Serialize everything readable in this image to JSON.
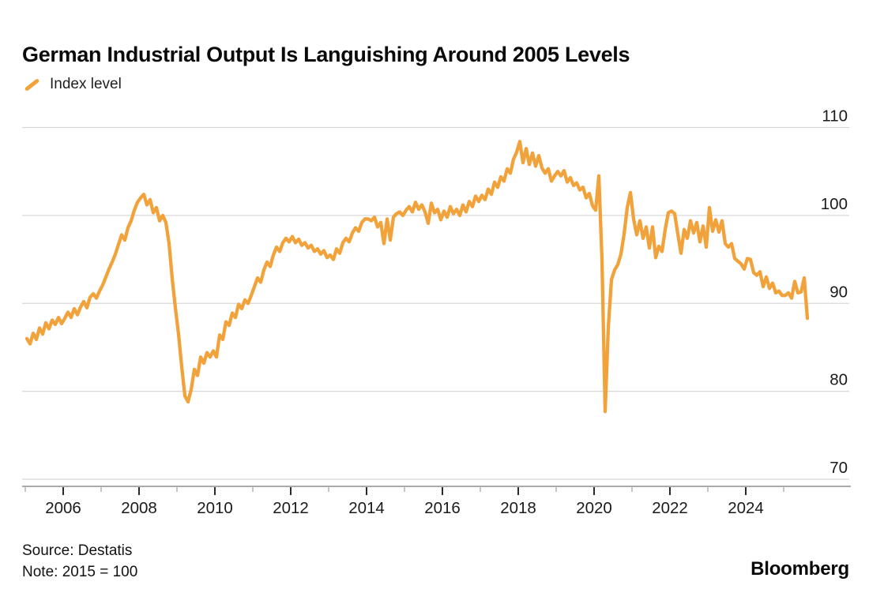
{
  "header": {
    "title": "German Industrial Output Is Languishing Around 2005 Levels"
  },
  "legend": {
    "label": "Index level",
    "color": "#F1A23A"
  },
  "footer": {
    "source": "Source: Destatis",
    "note": "Note: 2015 = 100",
    "brand": "Bloomberg"
  },
  "chart_data": {
    "type": "line",
    "title": "German Industrial Output Is Languishing Around 2005 Levels",
    "xlabel": "",
    "ylabel": "",
    "grid": "horizontal",
    "legend_position": "top-left",
    "ylim": [
      70,
      110
    ],
    "xlim": [
      2004.9,
      2026.75
    ],
    "y_ticks": [
      70,
      80,
      90,
      100,
      110
    ],
    "x_ticks_major": [
      2006,
      2008,
      2010,
      2012,
      2014,
      2016,
      2018,
      2020,
      2022,
      2024
    ],
    "x_ticks_minor": [
      2005,
      2007,
      2009,
      2011,
      2013,
      2015,
      2017,
      2019,
      2021,
      2023,
      2025
    ],
    "colors": {
      "line": "#F1A23A",
      "grid": "#D8D8D8",
      "axis": "#ABABAB",
      "tick_major": "#2B2B2B",
      "tick_minor": "#B5B5B5",
      "label": "#1A1A1A"
    },
    "series": [
      {
        "name": "Index level",
        "color": "#F1A23A",
        "start_year": 2005,
        "frequency": "monthly",
        "values": [
          86.0,
          85.4,
          86.6,
          85.9,
          87.2,
          86.5,
          87.8,
          87.1,
          88.1,
          87.6,
          88.4,
          87.7,
          88.3,
          89.0,
          88.4,
          89.4,
          88.7,
          89.6,
          90.2,
          89.5,
          90.7,
          91.1,
          90.6,
          91.4,
          92.1,
          93.0,
          93.9,
          94.7,
          95.6,
          96.7,
          97.8,
          97.2,
          98.6,
          99.4,
          100.6,
          101.5,
          102.0,
          102.4,
          101.2,
          101.8,
          100.3,
          100.9,
          99.4,
          100.0,
          99.2,
          96.8,
          92.8,
          89.5,
          86.5,
          82.8,
          79.5,
          78.8,
          80.2,
          82.5,
          81.8,
          83.9,
          83.2,
          84.4,
          83.9,
          84.6,
          83.9,
          86.4,
          85.9,
          87.9,
          87.5,
          88.9,
          88.4,
          89.9,
          89.4,
          90.4,
          90.0,
          90.9,
          91.9,
          92.9,
          92.4,
          93.8,
          94.7,
          94.2,
          95.5,
          96.4,
          95.9,
          96.9,
          97.4,
          97.0,
          97.6,
          96.9,
          97.3,
          96.6,
          96.9,
          96.3,
          96.6,
          95.9,
          96.2,
          95.6,
          96.0,
          95.2,
          95.5,
          95.0,
          96.2,
          95.7,
          96.9,
          97.4,
          97.0,
          98.0,
          98.6,
          98.2,
          99.2,
          99.6,
          99.6,
          99.4,
          99.8,
          98.7,
          99.2,
          96.8,
          99.6,
          97.2,
          99.8,
          100.2,
          100.4,
          100.0,
          100.6,
          101.0,
          100.4,
          101.5,
          100.7,
          101.2,
          100.4,
          99.1,
          101.4,
          100.3,
          100.7,
          99.5,
          100.5,
          99.8,
          101.0,
          100.2,
          100.7,
          100.0,
          101.2,
          100.4,
          101.6,
          101.0,
          102.2,
          101.6,
          102.3,
          101.8,
          103.0,
          102.4,
          103.8,
          103.2,
          104.4,
          103.9,
          105.3,
          104.8,
          106.4,
          107.2,
          108.4,
          106.0,
          107.6,
          105.8,
          107.1,
          105.6,
          106.8,
          105.4,
          104.8,
          105.3,
          103.9,
          104.5,
          105.0,
          104.5,
          105.1,
          103.8,
          104.3,
          103.4,
          103.7,
          102.9,
          103.2,
          102.0,
          102.5,
          101.1,
          100.6,
          104.5,
          95.0,
          77.7,
          87.3,
          92.7,
          93.8,
          94.4,
          95.6,
          97.9,
          100.9,
          102.6,
          99.6,
          97.8,
          99.4,
          97.4,
          98.7,
          96.3,
          98.7,
          95.2,
          96.5,
          95.9,
          98.4,
          100.3,
          100.5,
          100.2,
          97.9,
          95.7,
          98.4,
          97.4,
          99.4,
          98.0,
          99.2,
          97.0,
          98.8,
          96.4,
          100.9,
          98.2,
          99.5,
          98.1,
          99.4,
          96.8,
          96.4,
          96.8,
          95.1,
          94.8,
          94.5,
          93.9,
          95.1,
          95.0,
          93.5,
          93.2,
          93.6,
          91.9,
          93.0,
          91.7,
          92.3,
          91.2,
          91.4,
          90.9,
          90.9,
          91.2,
          90.6,
          92.5,
          91.2,
          91.3,
          92.9,
          88.3
        ]
      }
    ]
  }
}
